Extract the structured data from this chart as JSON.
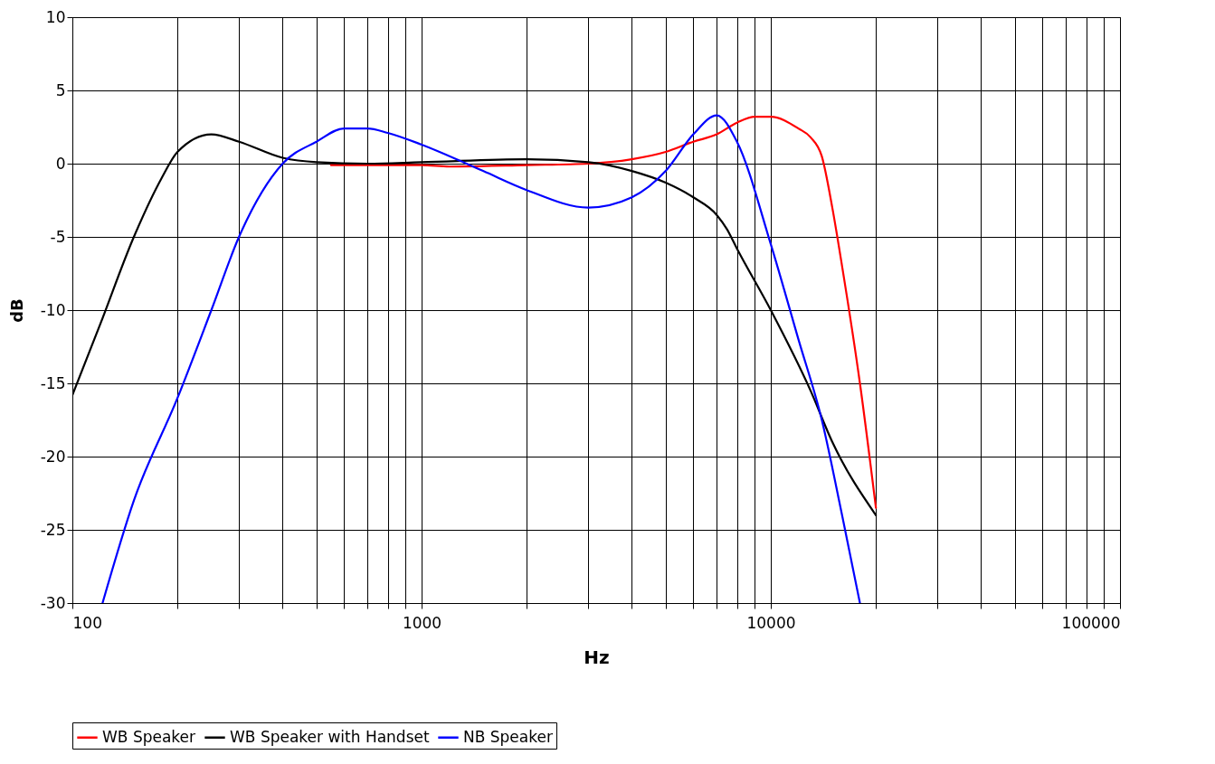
{
  "chart_data": {
    "type": "line",
    "xlabel": "Hz",
    "ylabel": "dB",
    "log": "x",
    "grid": true,
    "legend": "bottom",
    "line_style": "solid",
    "marker": "none",
    "xlim": [
      100,
      100000
    ],
    "ylim": [
      -30,
      10
    ],
    "xticks": [
      100,
      {
        "value": 200,
        "label": null
      },
      {
        "value": 300,
        "label": null
      },
      {
        "value": 400,
        "label": null
      },
      {
        "value": 500,
        "label": null
      },
      {
        "value": 600,
        "label": null
      },
      {
        "value": 700,
        "label": null
      },
      {
        "value": 800,
        "label": null
      },
      {
        "value": 900,
        "label": null
      },
      1000,
      {
        "value": 2000,
        "label": null
      },
      {
        "value": 3000,
        "label": null
      },
      {
        "value": 4000,
        "label": null
      },
      {
        "value": 5000,
        "label": null
      },
      {
        "value": 6000,
        "label": null
      },
      {
        "value": 7000,
        "label": null
      },
      {
        "value": 8000,
        "label": null
      },
      {
        "value": 9000,
        "label": null
      },
      10000,
      {
        "value": 20000,
        "label": null
      },
      {
        "value": 30000,
        "label": null
      },
      {
        "value": 40000,
        "label": null
      },
      {
        "value": 50000,
        "label": null
      },
      {
        "value": 60000,
        "label": null
      },
      {
        "value": 70000,
        "label": null
      },
      {
        "value": 80000,
        "label": null
      },
      {
        "value": 90000,
        "label": null
      },
      100000
    ],
    "yticks": [
      -30,
      -25,
      -20,
      -15,
      -10,
      -5,
      0,
      5,
      10
    ],
    "series": [
      {
        "name": "WB Speaker",
        "color": "#ff0000",
        "x": [
          550,
          1000,
          1200,
          2000,
          3000,
          4000,
          5000,
          6000,
          7000,
          8000,
          9000,
          10000,
          12000,
          13000,
          14000,
          15000,
          16000,
          18000,
          20000
        ],
        "values": [
          -0.1,
          -0.1,
          -0.2,
          -0.1,
          0,
          0.3,
          0.8,
          1.5,
          2,
          2.8,
          3.2,
          3.2,
          2.4,
          1.8,
          0.5,
          -3,
          -7,
          -15,
          -23.5
        ]
      },
      {
        "name": "WB Speaker with Handset",
        "color": "#000000",
        "x": [
          100,
          120,
          150,
          180,
          200,
          250,
          300,
          400,
          500,
          700,
          1000,
          2000,
          3000,
          4000,
          5000,
          6000,
          7000,
          7500,
          8000,
          10000,
          13000,
          15000,
          20000
        ],
        "values": [
          -15.8,
          -11,
          -5,
          -1,
          0.8,
          2,
          1.5,
          0.4,
          0.1,
          0,
          0.1,
          0.3,
          0.1,
          -0.5,
          -1.3,
          -2.3,
          -3.5,
          -4.5,
          -5.8,
          -10,
          -15.5,
          -19,
          -24
        ]
      },
      {
        "name": "NB Speaker",
        "color": "#0000ff",
        "x": [
          122,
          150,
          200,
          250,
          300,
          400,
          500,
          600,
          700,
          800,
          1000,
          1500,
          2000,
          3000,
          4000,
          5000,
          6000,
          7000,
          8000,
          10000,
          12000,
          14000,
          16000,
          18000
        ],
        "values": [
          -30,
          -23,
          -16,
          -10,
          -5,
          0,
          1.5,
          2.4,
          2.4,
          2.1,
          1.3,
          -0.5,
          -1.8,
          -3,
          -2.3,
          -0.5,
          2,
          3.3,
          1.5,
          -5.5,
          -12,
          -17.5,
          -24,
          -30
        ]
      }
    ]
  }
}
